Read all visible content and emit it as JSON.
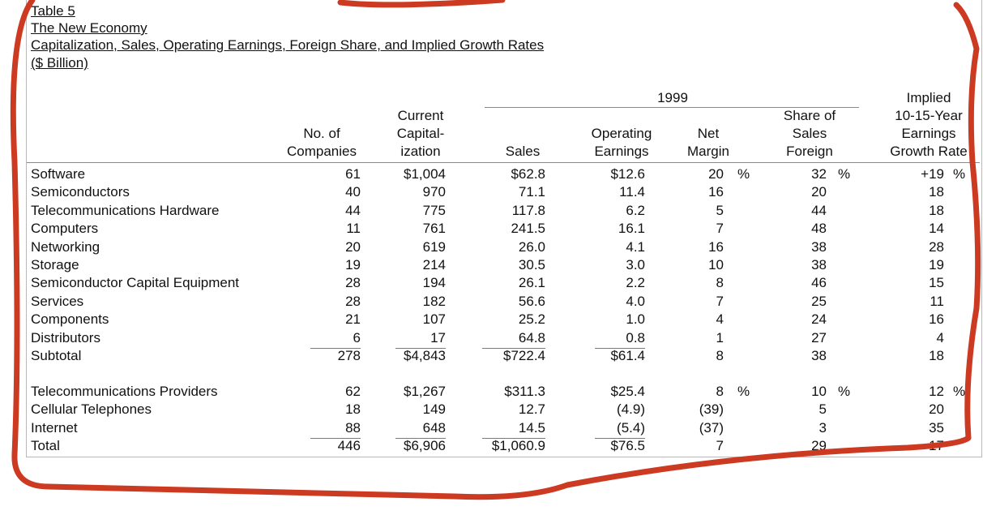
{
  "table": {
    "title_lines": [
      "Table 5",
      "The New Economy",
      "Capitalization, Sales, Operating Earnings, Foreign Share, and Implied Growth Rates",
      "($ Billion)"
    ],
    "group_header": "1999",
    "columns": {
      "companies": [
        "No. of",
        "Companies"
      ],
      "capitalization": [
        "Current",
        "Capital-",
        "ization"
      ],
      "sales": [
        "Sales"
      ],
      "operating": [
        "Operating",
        "Earnings"
      ],
      "margin": [
        "Net",
        "Margin"
      ],
      "foreign": [
        "Share of",
        "Sales",
        "Foreign"
      ],
      "growth": [
        "Implied",
        "10-15-Year",
        "Earnings",
        "Growth Rate"
      ]
    },
    "percent_sign": "%",
    "group1": [
      {
        "label": "Software",
        "companies": "61",
        "cap": "$1,004",
        "sales": "$62.8",
        "op": "$12.6",
        "margin": "20",
        "foreign": "32",
        "growth": "+19",
        "pct": true
      },
      {
        "label": "Semiconductors",
        "companies": "40",
        "cap": "970",
        "sales": "71.1",
        "op": "11.4",
        "margin": "16",
        "foreign": "20",
        "growth": "18"
      },
      {
        "label": "Telecommunications Hardware",
        "companies": "44",
        "cap": "775",
        "sales": "117.8",
        "op": "6.2",
        "margin": "5",
        "foreign": "44",
        "growth": "18"
      },
      {
        "label": "Computers",
        "companies": "11",
        "cap": "761",
        "sales": "241.5",
        "op": "16.1",
        "margin": "7",
        "foreign": "48",
        "growth": "14"
      },
      {
        "label": "Networking",
        "companies": "20",
        "cap": "619",
        "sales": "26.0",
        "op": "4.1",
        "margin": "16",
        "foreign": "38",
        "growth": "28"
      },
      {
        "label": "Storage",
        "companies": "19",
        "cap": "214",
        "sales": "30.5",
        "op": "3.0",
        "margin": "10",
        "foreign": "38",
        "growth": "19"
      },
      {
        "label": "Semiconductor Capital Equipment",
        "companies": "28",
        "cap": "194",
        "sales": "26.1",
        "op": "2.2",
        "margin": "8",
        "foreign": "46",
        "growth": "15"
      },
      {
        "label": "Services",
        "companies": "28",
        "cap": "182",
        "sales": "56.6",
        "op": "4.0",
        "margin": "7",
        "foreign": "25",
        "growth": "11"
      },
      {
        "label": "Components",
        "companies": "21",
        "cap": "107",
        "sales": "25.2",
        "op": "1.0",
        "margin": "4",
        "foreign": "24",
        "growth": "16"
      },
      {
        "label": "Distributors",
        "companies": "6",
        "cap": "17",
        "sales": "64.8",
        "op": "0.8",
        "margin": "1",
        "foreign": "27",
        "growth": "4"
      },
      {
        "label": " Subtotal",
        "companies": "278",
        "cap": "$4,843",
        "sales": "$722.4",
        "op": "$61.4",
        "margin": "8",
        "foreign": "38",
        "growth": "18"
      }
    ],
    "group2": [
      {
        "label": "Telecommunications Providers",
        "companies": "62",
        "cap": "$1,267",
        "sales": "$311.3",
        "op": "$25.4",
        "margin": "8",
        "foreign": "10",
        "growth": "12",
        "pct": true
      },
      {
        "label": "Cellular Telephones",
        "companies": "18",
        "cap": "149",
        "sales": "12.7",
        "op": "(4.9)",
        "margin": "(39)",
        "foreign": "5",
        "growth": "20"
      },
      {
        "label": "Internet",
        "companies": "88",
        "cap": "648",
        "sales": "14.5",
        "op": "(5.4)",
        "margin": "(37)",
        "foreign": "3",
        "growth": "35"
      },
      {
        "label": " Total",
        "companies": "446",
        "cap": "$6,906",
        "sales": "$1,060.9",
        "op": "$76.5",
        "margin": "7",
        "foreign": "29",
        "growth": "17"
      }
    ],
    "annotation_color": "#cc3a22"
  }
}
